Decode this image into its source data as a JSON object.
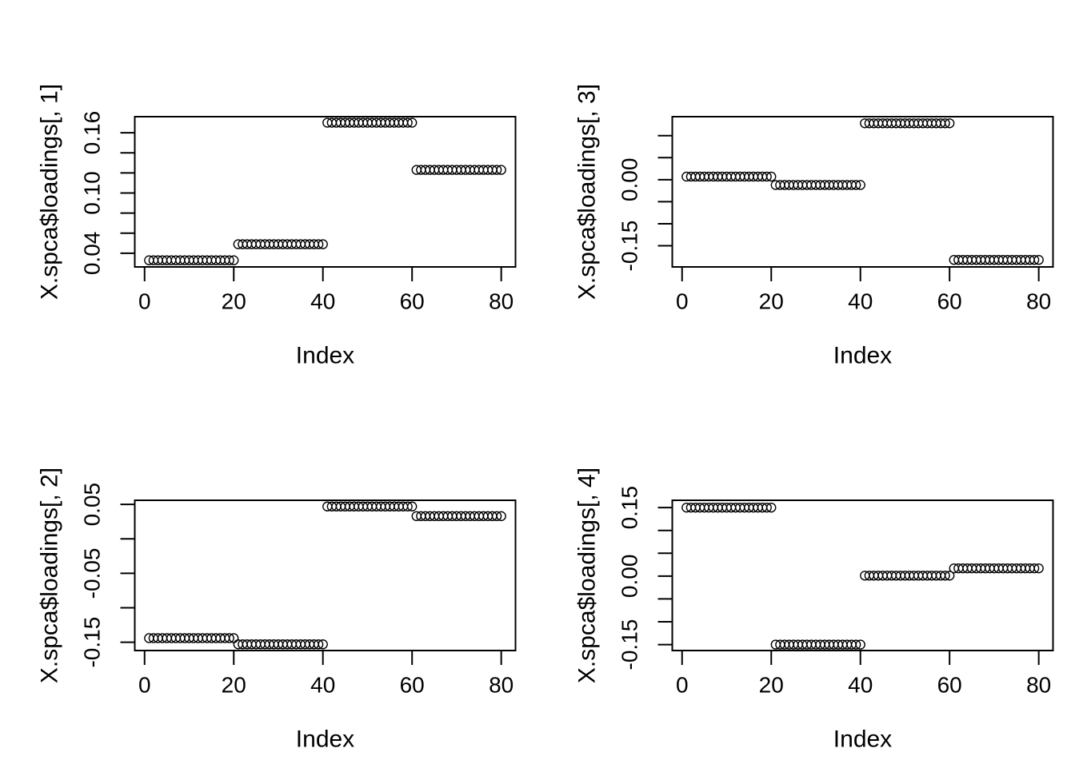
{
  "figure": {
    "background": "#ffffff",
    "foreground": "#000000",
    "marker": "open-circle",
    "panel_order": [
      "top-left",
      "top-right",
      "bottom-left",
      "bottom-right"
    ]
  },
  "chart_data": [
    {
      "type": "scatter",
      "position": "top-left",
      "title": "",
      "xlabel": "Index",
      "ylabel": "X.spca$loadings[, 1]",
      "xlim": [
        -2.2,
        83.2
      ],
      "ylim": [
        0.0264,
        0.176
      ],
      "grid": false,
      "xticks": [
        {
          "value": 0,
          "label": "0"
        },
        {
          "value": 20,
          "label": "20"
        },
        {
          "value": 40,
          "label": "40"
        },
        {
          "value": 60,
          "label": "60"
        },
        {
          "value": 80,
          "label": "80"
        }
      ],
      "yticks": [
        {
          "value": 0.04,
          "label": "0.04"
        },
        {
          "value": 0.06,
          "label": ""
        },
        {
          "value": 0.08,
          "label": ""
        },
        {
          "value": 0.1,
          "label": "0.10"
        },
        {
          "value": 0.12,
          "label": ""
        },
        {
          "value": 0.14,
          "label": ""
        },
        {
          "value": 0.16,
          "label": "0.16"
        }
      ],
      "groups": [
        {
          "from": 1,
          "to": 20,
          "value": 0.033
        },
        {
          "from": 21,
          "to": 40,
          "value": 0.049
        },
        {
          "from": 41,
          "to": 60,
          "value": 0.17
        },
        {
          "from": 61,
          "to": 80,
          "value": 0.123
        }
      ]
    },
    {
      "type": "scatter",
      "position": "top-right",
      "title": "",
      "xlabel": "Index",
      "ylabel": "X.spca$loadings[, 3]",
      "xlim": [
        -2.2,
        83.2
      ],
      "ylim": [
        -0.198,
        0.143
      ],
      "grid": false,
      "xticks": [
        {
          "value": 0,
          "label": "0"
        },
        {
          "value": 20,
          "label": "20"
        },
        {
          "value": 40,
          "label": "40"
        },
        {
          "value": 60,
          "label": "60"
        },
        {
          "value": 80,
          "label": "80"
        }
      ],
      "yticks": [
        {
          "value": -0.15,
          "label": "-0.15"
        },
        {
          "value": -0.1,
          "label": ""
        },
        {
          "value": -0.05,
          "label": ""
        },
        {
          "value": 0.0,
          "label": "0.00"
        },
        {
          "value": 0.05,
          "label": ""
        },
        {
          "value": 0.1,
          "label": ""
        }
      ],
      "groups": [
        {
          "from": 1,
          "to": 20,
          "value": 0.007
        },
        {
          "from": 21,
          "to": 40,
          "value": -0.012
        },
        {
          "from": 41,
          "to": 60,
          "value": 0.128
        },
        {
          "from": 61,
          "to": 80,
          "value": -0.182
        }
      ]
    },
    {
      "type": "scatter",
      "position": "bottom-left",
      "title": "",
      "xlabel": "Index",
      "ylabel": "X.spca$loadings[, 2]",
      "xlim": [
        -2.2,
        83.2
      ],
      "ylim": [
        -0.162,
        0.056
      ],
      "grid": false,
      "xticks": [
        {
          "value": 0,
          "label": "0"
        },
        {
          "value": 20,
          "label": "20"
        },
        {
          "value": 40,
          "label": "40"
        },
        {
          "value": 60,
          "label": "60"
        },
        {
          "value": 80,
          "label": "80"
        }
      ],
      "yticks": [
        {
          "value": -0.15,
          "label": "-0.15"
        },
        {
          "value": -0.1,
          "label": ""
        },
        {
          "value": -0.05,
          "label": "-0.05"
        },
        {
          "value": 0.0,
          "label": ""
        },
        {
          "value": 0.05,
          "label": "0.05"
        }
      ],
      "groups": [
        {
          "from": 1,
          "to": 20,
          "value": -0.144
        },
        {
          "from": 21,
          "to": 40,
          "value": -0.153
        },
        {
          "from": 41,
          "to": 60,
          "value": 0.047
        },
        {
          "from": 61,
          "to": 80,
          "value": 0.033
        }
      ]
    },
    {
      "type": "scatter",
      "position": "bottom-right",
      "title": "",
      "xlabel": "Index",
      "ylabel": "X.spca$loadings[, 4]",
      "xlim": [
        -2.2,
        83.2
      ],
      "ylim": [
        -0.163,
        0.166
      ],
      "grid": false,
      "xticks": [
        {
          "value": 0,
          "label": "0"
        },
        {
          "value": 20,
          "label": "20"
        },
        {
          "value": 40,
          "label": "40"
        },
        {
          "value": 60,
          "label": "60"
        },
        {
          "value": 80,
          "label": "80"
        }
      ],
      "yticks": [
        {
          "value": -0.15,
          "label": "-0.15"
        },
        {
          "value": -0.1,
          "label": ""
        },
        {
          "value": -0.05,
          "label": ""
        },
        {
          "value": 0.0,
          "label": "0.00"
        },
        {
          "value": 0.05,
          "label": ""
        },
        {
          "value": 0.1,
          "label": ""
        },
        {
          "value": 0.15,
          "label": "0.15"
        }
      ],
      "groups": [
        {
          "from": 1,
          "to": 20,
          "value": 0.15
        },
        {
          "from": 21,
          "to": 40,
          "value": -0.15
        },
        {
          "from": 41,
          "to": 60,
          "value": 0.001
        },
        {
          "from": 61,
          "to": 80,
          "value": 0.017
        }
      ]
    }
  ]
}
